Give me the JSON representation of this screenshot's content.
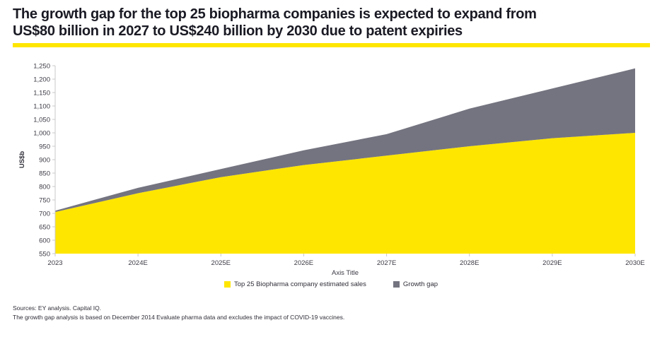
{
  "header": {
    "title": "The growth gap for the top 25 biopharma companies is expected to expand from\nUS$80 billion in 2027 to US$240 billion by 2030 due to patent expiries",
    "accent_color": "#ffe600"
  },
  "chart_data": {
    "type": "area",
    "stacked": true,
    "categories": [
      "2023",
      "2024E",
      "2025E",
      "2026E",
      "2027E",
      "2028E",
      "2029E",
      "2030E"
    ],
    "series": [
      {
        "name": "Top 25 Biopharma company estimated sales",
        "color": "#ffe600",
        "values": [
          705,
          775,
          835,
          880,
          915,
          950,
          980,
          1000
        ]
      },
      {
        "name": "Growth gap",
        "color": "#747480",
        "values": [
          5,
          20,
          30,
          55,
          80,
          140,
          185,
          240
        ]
      }
    ],
    "stacked_totals": [
      710,
      795,
      865,
      935,
      995,
      1090,
      1165,
      1240
    ],
    "title": "",
    "xlabel": "Axis Title",
    "ylabel": "US$b",
    "ylim": [
      550,
      1250
    ],
    "ytick_step": 50,
    "grid": false,
    "legend_position": "bottom",
    "axis_color": "#c9c9c9"
  },
  "footer": {
    "line1": "Sources: EY analysis. Capital IQ.",
    "line2": "The growth gap analysis is based on December 2014 Evaluate pharma data and excludes the impact of COVID-19 vaccines."
  }
}
